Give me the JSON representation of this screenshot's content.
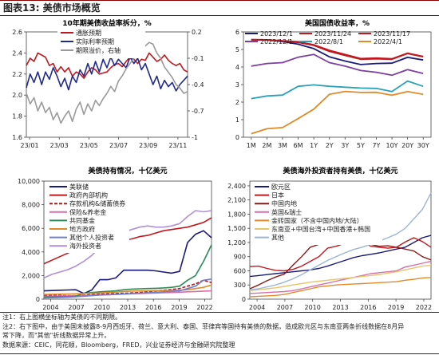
{
  "figure": {
    "label": "图表13:",
    "title": "美债市场概览"
  },
  "chart_data": [
    {
      "id": "p1",
      "type": "line",
      "title": "10年期美债收益率拆分，%",
      "x_ticks": [
        "23/01",
        "23/03",
        "23/05",
        "23/07",
        "23/09",
        "23/11"
      ],
      "y_left": {
        "min": 1.6,
        "max": 2.6,
        "ticks": [
          "1.6",
          "1.8",
          "2.0",
          "2.2",
          "2.4",
          "2.6"
        ]
      },
      "y_right": {
        "min": -1.0,
        "max": 0.2,
        "ticks": [
          "-1",
          "-0.7",
          "-0.4",
          "-0.1",
          "0.2"
        ]
      },
      "series": [
        {
          "name": "通胀预期",
          "color": "#c0181e",
          "axis": "left",
          "values": [
            2.28,
            2.35,
            2.32,
            2.4,
            2.38,
            2.36,
            2.28,
            2.3,
            2.22,
            2.27,
            2.22,
            2.26,
            2.18,
            2.22,
            2.2,
            2.16,
            2.22,
            2.26,
            2.24,
            2.2,
            2.21,
            2.22,
            2.26,
            2.29,
            2.3,
            2.27,
            2.32,
            2.36,
            2.34,
            2.3,
            2.34,
            2.33,
            2.4,
            2.36,
            2.32,
            2.34,
            2.38,
            2.33,
            2.3,
            2.28,
            2.3,
            2.24,
            2.22
          ]
        },
        {
          "name": "实际利率预期",
          "color": "#1f2a8c",
          "axis": "left",
          "values": [
            2.07,
            2.2,
            2.12,
            2.22,
            2.1,
            2.22,
            2.15,
            2.26,
            2.18,
            2.08,
            2.16,
            2.05,
            2.18,
            2.12,
            2.24,
            2.18,
            2.3,
            2.2,
            2.32,
            2.22,
            2.34,
            2.26,
            2.36,
            2.28,
            2.34,
            2.3,
            2.26,
            2.36,
            2.3,
            2.35,
            2.24,
            2.3,
            2.2,
            2.1,
            2.18,
            2.06,
            2.14,
            2.08,
            2.12,
            2.04,
            2.1,
            2.14,
            2.18
          ]
        },
        {
          "name": "期限溢价，右轴",
          "color": "#9a9a9a",
          "axis": "right",
          "values": [
            -0.5,
            -0.62,
            -0.55,
            -0.7,
            -0.6,
            -0.72,
            -0.66,
            -0.8,
            -0.72,
            -0.84,
            -0.76,
            -0.7,
            -0.82,
            -0.68,
            -0.6,
            -0.74,
            -0.62,
            -0.7,
            -0.58,
            -0.64,
            -0.56,
            -0.5,
            -0.42,
            -0.48,
            -0.36,
            -0.3,
            -0.22,
            -0.16,
            -0.1,
            -0.06,
            0.0,
            0.04,
            0.08,
            0.06,
            -0.04,
            -0.1,
            -0.2,
            -0.26,
            -0.32,
            -0.4,
            -0.44,
            -0.5,
            -0.48
          ]
        }
      ]
    },
    {
      "id": "p2",
      "type": "line",
      "title": "美国国债收益率，%",
      "categories": [
        "1M",
        "2M",
        "3M",
        "6M",
        "1Y",
        "2Y",
        "3Y",
        "5Y",
        "7Y",
        "10Y",
        "20Y",
        "30Y"
      ],
      "y": {
        "min": 0,
        "max": 6,
        "ticks": [
          "0",
          "1",
          "2",
          "3",
          "4",
          "5",
          "6"
        ]
      },
      "series": [
        {
          "name": "2023/12/1",
          "color": "#1a1a7a",
          "values": [
            5.55,
            5.54,
            5.45,
            5.3,
            5.05,
            4.58,
            4.34,
            4.14,
            4.2,
            4.22,
            4.55,
            4.4
          ]
        },
        {
          "name": "2023/11/24",
          "color": "#c0181e",
          "values": [
            5.57,
            5.55,
            5.49,
            5.44,
            5.27,
            4.95,
            4.72,
            4.48,
            4.51,
            4.47,
            4.79,
            4.6
          ]
        },
        {
          "name": "2023/11/17",
          "color": "#c0181e",
          "values": [
            5.55,
            5.54,
            5.48,
            5.4,
            5.23,
            4.89,
            4.66,
            4.44,
            4.47,
            4.44,
            4.77,
            4.58
          ]
        },
        {
          "name": "2022/12/1",
          "color": "#7b3fa0",
          "values": [
            4.05,
            4.2,
            4.25,
            4.56,
            4.72,
            4.25,
            4.05,
            3.8,
            3.7,
            3.53,
            3.85,
            3.63
          ]
        },
        {
          "name": "2022/8/1",
          "color": "#2aa1b5",
          "values": [
            2.2,
            2.35,
            2.4,
            2.9,
            2.98,
            2.9,
            2.85,
            2.8,
            2.78,
            2.6,
            3.2,
            2.9
          ]
        },
        {
          "name": "2022/4/1",
          "color": "#e08b2a",
          "values": [
            0.2,
            0.48,
            0.55,
            1.06,
            1.6,
            2.44,
            2.61,
            2.55,
            2.56,
            2.39,
            2.6,
            2.44
          ]
        }
      ]
    },
    {
      "id": "p3",
      "type": "line",
      "title": "美债持有情况，十亿美元",
      "x_ticks": [
        "2004",
        "2007",
        "2010",
        "2013",
        "2016",
        "2019",
        "2022"
      ],
      "y": {
        "min": 0,
        "max": 10000,
        "ticks": [
          "0",
          "2,000",
          "4,000",
          "6,000",
          "8,000",
          "10,000"
        ]
      },
      "series": [
        {
          "name": "美联储",
          "color": "#1a1a7a",
          "values": [
            700,
            730,
            760,
            780,
            800,
            480,
            780,
            1650,
            1650,
            1800,
            2450,
            2450,
            2450,
            2450,
            2400,
            2300,
            2200,
            2350,
            4800,
            5500,
            5800,
            5200
          ]
        },
        {
          "name": "政府內部机构",
          "color": "#c0181e",
          "values": [
            3000,
            3300,
            3600,
            3900,
            4200,
            4400,
            4600,
            4700,
            4800,
            4900,
            5000,
            5100,
            5300,
            5400,
            5600,
            5800,
            5900,
            6000,
            6100,
            6300,
            6500,
            6900
          ]
        },
        {
          "name": "存款机构&储蓄债券",
          "color": "#b01818",
          "dash": true,
          "values": [
            350,
            330,
            320,
            300,
            290,
            330,
            400,
            420,
            450,
            480,
            500,
            530,
            560,
            620,
            700,
            760,
            820,
            900,
            1100,
            1300,
            1600,
            1400
          ]
        },
        {
          "name": "保险&养老金",
          "color": "#d86fa8",
          "values": [
            250,
            260,
            270,
            280,
            290,
            300,
            330,
            350,
            380,
            400,
            430,
            460,
            480,
            500,
            520,
            540,
            560,
            590,
            620,
            650,
            680,
            700
          ]
        },
        {
          "name": "共同基金",
          "color": "#2e8b57",
          "values": [
            180,
            190,
            200,
            200,
            250,
            500,
            560,
            620,
            660,
            700,
            800,
            850,
            880,
            900,
            920,
            950,
            1000,
            1100,
            1600,
            2000,
            3200,
            4600
          ]
        },
        {
          "name": "地方政府",
          "color": "#e08b2a",
          "values": [
            400,
            420,
            430,
            440,
            450,
            480,
            500,
            520,
            560,
            600,
            650,
            680,
            700,
            710,
            720,
            730,
            740,
            760,
            800,
            900,
            1000,
            1200
          ]
        },
        {
          "name": "其他个人投资者",
          "color": "#6f7fd0",
          "values": [
            100,
            120,
            140,
            160,
            200,
            250,
            300,
            350,
            380,
            400,
            430,
            460,
            500,
            540,
            580,
            620,
            660,
            700,
            900,
            1100,
            1600,
            1700
          ]
        },
        {
          "name": "海外投资者",
          "color": "#b08fd8",
          "values": [
            1800,
            2100,
            2300,
            2500,
            2800,
            3200,
            3700,
            4400,
            5000,
            5500,
            5700,
            5900,
            6100,
            6200,
            6100,
            6100,
            6200,
            6400,
            7000,
            7500,
            7400,
            7500
          ]
        }
      ]
    },
    {
      "id": "p4",
      "type": "line",
      "title": "美债海外投资者持有美债，十亿美元",
      "x_ticks": [
        "2004",
        "2007",
        "2010",
        "2013",
        "2016",
        "2019",
        "2022"
      ],
      "y": {
        "min": 0,
        "max": 2500,
        "ticks": [
          "0",
          "300",
          "600",
          "900",
          "1,200",
          "1,500",
          "1,800",
          "2,100",
          "2,400"
        ]
      },
      "series": [
        {
          "name": "欧元区",
          "color": "#1a1a7a",
          "values": [
            480,
            500,
            520,
            540,
            560,
            580,
            600,
            620,
            650,
            700,
            760,
            820,
            880,
            920,
            950,
            980,
            1020,
            1060,
            1100,
            1200,
            1300,
            1350
          ]
        },
        {
          "name": "日本",
          "color": "#c0181e",
          "values": [
            690,
            700,
            650,
            610,
            600,
            630,
            700,
            800,
            900,
            1080,
            1120,
            1180,
            1230,
            1240,
            1120,
            1100,
            1080,
            1100,
            1210,
            1300,
            1220,
            1100
          ]
        },
        {
          "name": "中国内地",
          "color": "#8b1a1a",
          "values": [
            220,
            300,
            390,
            470,
            530,
            720,
            900,
            1100,
            1160,
            1200,
            1250,
            1270,
            1240,
            1250,
            1160,
            1120,
            1130,
            1100,
            1060,
            1020,
            900,
            830
          ]
        },
        {
          "name": "英国&瑞士",
          "color": "#d86fa8",
          "values": [
            120,
            130,
            140,
            150,
            160,
            180,
            220,
            260,
            300,
            340,
            380,
            420,
            460,
            500,
            540,
            560,
            580,
            600,
            680,
            720,
            760,
            800
          ]
        },
        {
          "name": "金砖国家（不含中国内地/大陆）",
          "color": "#e08b2a",
          "values": [
            50,
            60,
            70,
            80,
            100,
            140,
            180,
            220,
            260,
            280,
            300,
            310,
            320,
            330,
            340,
            350,
            360,
            370,
            400,
            420,
            450,
            460
          ]
        },
        {
          "name": "东南亚+中国台湾+中国香港+韩国",
          "color": "#e8c46a",
          "values": [
            180,
            200,
            220,
            240,
            270,
            300,
            330,
            360,
            380,
            400,
            420,
            440,
            460,
            480,
            500,
            520,
            550,
            580,
            620,
            660,
            700,
            720
          ]
        },
        {
          "name": "其他",
          "color": "#9bb5d8",
          "values": [
            200,
            220,
            260,
            300,
            360,
            430,
            520,
            620,
            720,
            820,
            900,
            980,
            1050,
            1100,
            1160,
            1230,
            1300,
            1380,
            1500,
            1700,
            1900,
            2250
          ]
        }
      ]
    }
  ],
  "notes": [
    "注1：右上图横坐标轴为美债的不同期限。",
    "注2：右下图中，由于美国未披露8-9月西班牙、荷兰、意大利、泰国、菲律宾等国持有美债的数据，造成欧元区与东南亚两条折线数据在8月异",
    "常下降，而\"其他\"折线数据异常上升。",
    "数据来源：CEIC，同花顺，Bloomberg，FRED，兴业证券经济与金融研究院整理"
  ]
}
